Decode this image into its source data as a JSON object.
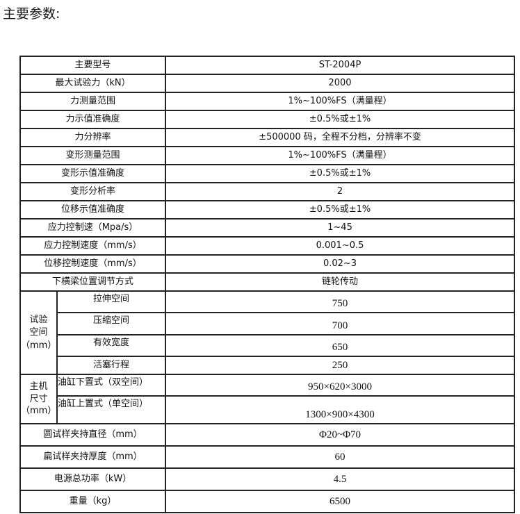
{
  "title": "主要参数:",
  "rows": [
    {
      "label": "主要型号",
      "value": "ST-2004P"
    },
    {
      "label": "最大试验力（kN）",
      "value": "2000"
    },
    {
      "label": "力测量范围",
      "value": "1%~100%FS（满量程）"
    },
    {
      "label": "力示值准确度",
      "value": "±0.5%或±1%"
    },
    {
      "label": "力分辨率",
      "value": "±500000 码，全程不分档，分辨率不变"
    },
    {
      "label": "变形测量范围",
      "value": "1%~100%FS（满量程）"
    },
    {
      "label": "变形示值准确度",
      "value": "±0.5%或±1%"
    },
    {
      "label": "变形分析率",
      "value": "2"
    },
    {
      "label": "位移示值准确度",
      "value": "±0.5%或±1%"
    },
    {
      "label": "应力控制速（Mpa/s）",
      "value": "1~45"
    },
    {
      "label": "应力控制速度（mm/s）",
      "value": "0.001~0.5"
    },
    {
      "label": "位移控制速度（mm/s）",
      "value": "0.02~3"
    },
    {
      "label": "下横梁位置调节方式",
      "value": "链轮传动"
    }
  ],
  "test_space": {
    "group_label": [
      "试验",
      "空间",
      "（mm）"
    ],
    "rows": [
      {
        "label": "拉伸空间",
        "value": "750"
      },
      {
        "label": "压缩空间",
        "value": "700"
      },
      {
        "label": "有效宽度",
        "value": "650"
      },
      {
        "label": "活塞行程",
        "value": "250"
      }
    ]
  },
  "host_size": {
    "group_label": [
      "主机",
      "尺寸",
      "（mm）"
    ],
    "rows": [
      {
        "label": "油缸下置式（双空间）",
        "value": "950×620×3000"
      },
      {
        "label": "油缸上置式（单空间）",
        "value": "1300×900×4300"
      }
    ]
  },
  "tail_rows": [
    {
      "label": "圆试样夹持直径（mm）",
      "value": "Φ20~Φ70"
    },
    {
      "label": "扁试样夹持厚度（mm）",
      "value": "60"
    },
    {
      "label": "电源总功率（kW）",
      "value": "4.5"
    },
    {
      "label": "重量（kg）",
      "value": "6500"
    }
  ]
}
